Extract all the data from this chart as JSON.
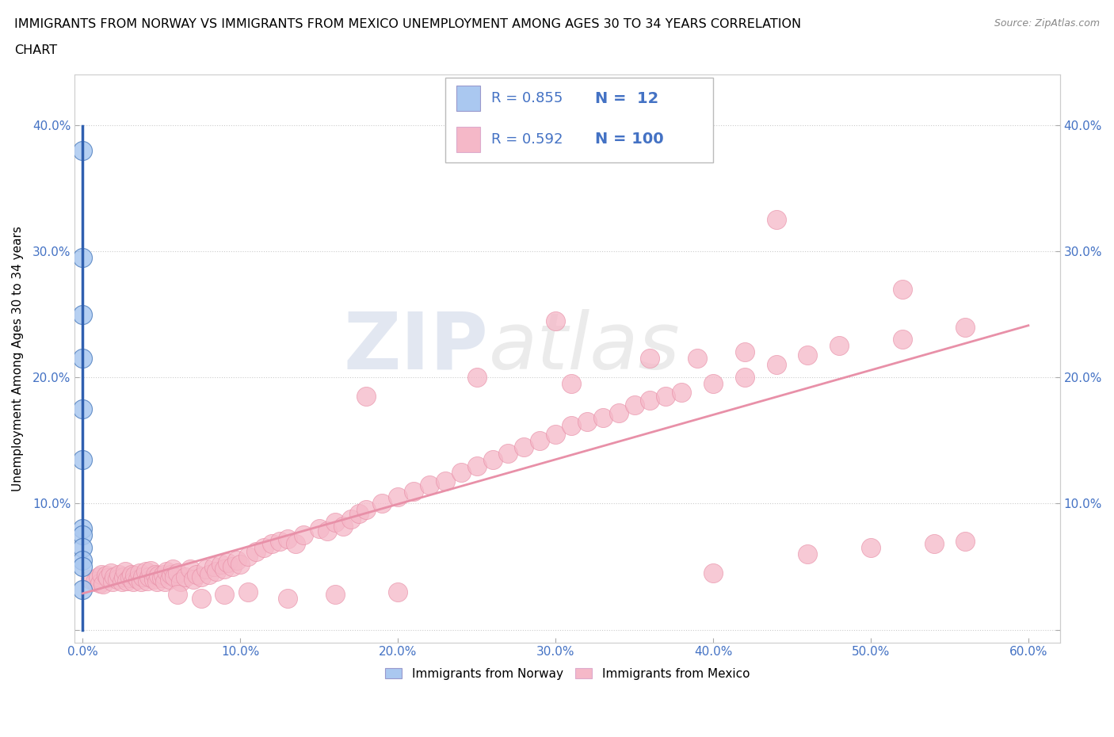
{
  "title_line1": "IMMIGRANTS FROM NORWAY VS IMMIGRANTS FROM MEXICO UNEMPLOYMENT AMONG AGES 30 TO 34 YEARS CORRELATION",
  "title_line2": "CHART",
  "source": "Source: ZipAtlas.com",
  "ylabel": "Unemployment Among Ages 30 to 34 years",
  "xlim": [
    -0.005,
    0.62
  ],
  "ylim": [
    -0.01,
    0.44
  ],
  "xticks": [
    0.0,
    0.1,
    0.2,
    0.3,
    0.4,
    0.5,
    0.6
  ],
  "yticks": [
    0.0,
    0.1,
    0.2,
    0.3,
    0.4
  ],
  "ytick_labels_left": [
    "",
    "10.0%",
    "20.0%",
    "30.0%",
    "40.0%"
  ],
  "ytick_labels_right": [
    "",
    "10.0%",
    "20.0%",
    "30.0%",
    "40.0%"
  ],
  "xtick_labels": [
    "0.0%",
    "",
    "",
    "",
    "",
    "",
    ""
  ],
  "norway_R": 0.855,
  "norway_N": 12,
  "mexico_R": 0.592,
  "mexico_N": 100,
  "norway_color": "#aac8f0",
  "mexico_color": "#f5b8c8",
  "norway_edge_color": "#5080c0",
  "mexico_edge_color": "#e890a8",
  "norway_line_color": "#3060b0",
  "mexico_line_color": "#e890a8",
  "grid_color": "#cccccc",
  "grid_style": ":",
  "norway_x": [
    0.0,
    0.0,
    0.0,
    0.0,
    0.0,
    0.0,
    0.0,
    0.0,
    0.0,
    0.0,
    0.0,
    0.0
  ],
  "norway_y": [
    0.38,
    0.295,
    0.25,
    0.215,
    0.175,
    0.135,
    0.08,
    0.075,
    0.065,
    0.055,
    0.05,
    0.032
  ],
  "mexico_x": [
    0.005,
    0.008,
    0.01,
    0.011,
    0.012,
    0.013,
    0.015,
    0.016,
    0.018,
    0.019,
    0.02,
    0.022,
    0.023,
    0.025,
    0.026,
    0.027,
    0.028,
    0.03,
    0.031,
    0.032,
    0.033,
    0.035,
    0.036,
    0.037,
    0.038,
    0.04,
    0.041,
    0.042,
    0.043,
    0.045,
    0.046,
    0.047,
    0.048,
    0.05,
    0.051,
    0.052,
    0.053,
    0.055,
    0.056,
    0.057,
    0.058,
    0.06,
    0.062,
    0.065,
    0.068,
    0.07,
    0.072,
    0.075,
    0.078,
    0.08,
    0.083,
    0.085,
    0.088,
    0.09,
    0.092,
    0.095,
    0.098,
    0.1,
    0.105,
    0.11,
    0.115,
    0.12,
    0.125,
    0.13,
    0.135,
    0.14,
    0.15,
    0.155,
    0.16,
    0.165,
    0.17,
    0.175,
    0.18,
    0.19,
    0.2,
    0.21,
    0.22,
    0.23,
    0.24,
    0.25,
    0.26,
    0.27,
    0.28,
    0.29,
    0.3,
    0.31,
    0.32,
    0.33,
    0.34,
    0.35,
    0.36,
    0.37,
    0.38,
    0.4,
    0.42,
    0.44,
    0.46,
    0.48,
    0.52,
    0.56
  ],
  "mexico_y": [
    0.04,
    0.038,
    0.042,
    0.037,
    0.044,
    0.036,
    0.043,
    0.041,
    0.045,
    0.038,
    0.042,
    0.04,
    0.044,
    0.038,
    0.042,
    0.046,
    0.039,
    0.041,
    0.044,
    0.038,
    0.043,
    0.04,
    0.045,
    0.038,
    0.042,
    0.046,
    0.039,
    0.042,
    0.047,
    0.04,
    0.044,
    0.038,
    0.043,
    0.041,
    0.044,
    0.038,
    0.046,
    0.04,
    0.044,
    0.048,
    0.042,
    0.045,
    0.038,
    0.042,
    0.048,
    0.04,
    0.044,
    0.042,
    0.048,
    0.044,
    0.05,
    0.046,
    0.052,
    0.048,
    0.053,
    0.05,
    0.055,
    0.052,
    0.058,
    0.062,
    0.065,
    0.068,
    0.07,
    0.072,
    0.068,
    0.075,
    0.08,
    0.078,
    0.085,
    0.082,
    0.088,
    0.092,
    0.095,
    0.1,
    0.105,
    0.11,
    0.115,
    0.118,
    0.125,
    0.13,
    0.135,
    0.14,
    0.145,
    0.15,
    0.155,
    0.162,
    0.165,
    0.168,
    0.172,
    0.178,
    0.182,
    0.185,
    0.188,
    0.195,
    0.2,
    0.21,
    0.218,
    0.225,
    0.23,
    0.24
  ],
  "mexico_outlier_x": [
    0.3,
    0.44,
    0.52,
    0.18,
    0.25,
    0.31,
    0.36,
    0.39,
    0.42
  ],
  "mexico_outlier_y": [
    0.245,
    0.325,
    0.27,
    0.185,
    0.2,
    0.195,
    0.215,
    0.215,
    0.22
  ],
  "mexico_low_x": [
    0.06,
    0.075,
    0.09,
    0.105,
    0.13,
    0.16,
    0.2,
    0.56,
    0.5,
    0.54,
    0.46,
    0.4
  ],
  "mexico_low_y": [
    0.028,
    0.025,
    0.028,
    0.03,
    0.025,
    0.028,
    0.03,
    0.07,
    0.065,
    0.068,
    0.06,
    0.045
  ],
  "watermark1": "ZIP",
  "watermark2": "atlas",
  "legend_norway_label": "Immigrants from Norway",
  "legend_mexico_label": "Immigrants from Mexico"
}
